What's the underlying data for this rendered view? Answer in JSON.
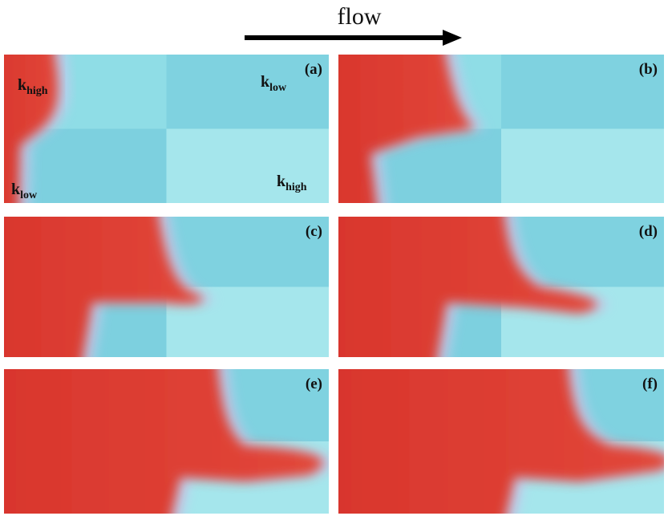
{
  "header": {
    "title": "flow"
  },
  "panels": [
    {
      "label": "(a)"
    },
    {
      "label": "(b)"
    },
    {
      "label": "(c)"
    },
    {
      "label": "(d)"
    },
    {
      "label": "(e)"
    },
    {
      "label": "(f)"
    }
  ],
  "annotations": [
    {
      "base": "k",
      "sub": "high"
    },
    {
      "base": "k",
      "sub": "low"
    },
    {
      "base": "k",
      "sub": "low"
    },
    {
      "base": "k",
      "sub": "high"
    }
  ]
}
